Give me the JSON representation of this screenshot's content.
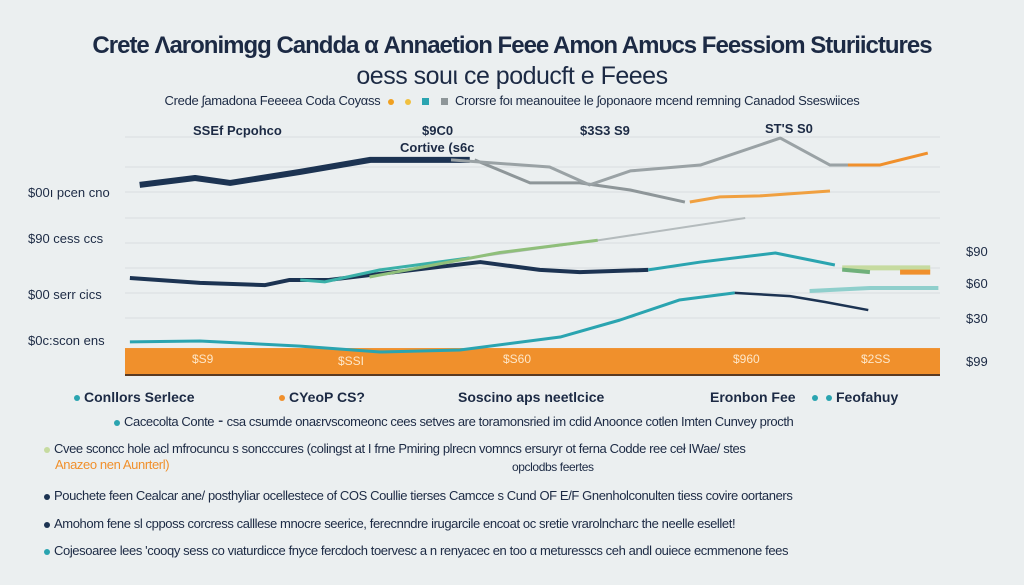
{
  "title": "Crete Λaronimgg Candda α Annaetion Feee Amon Amυcs Feessiom Sturiictures",
  "subtitle": "oess souι ce poducft e Feees",
  "legend_line": {
    "left": "Crede ʃamadona Feeeea  Coda Coyαss",
    "right": "Crorsre foι meanouitee le ʃoponaore mcend remning Canadod Sseswiices"
  },
  "colors": {
    "navy": "#1c3352",
    "gray": "#8e9699",
    "teal": "#2aa4b0",
    "orange": "#f0902c",
    "green": "#8fbf7a",
    "paleteal": "#8fcfcc",
    "palegreen": "#c6dba0"
  },
  "chart_data": {
    "type": "line",
    "title": "Crete Λaronimgg Candda α Annaetion Feee Amon Amυcs Feessiom Sturiictures",
    "xlim": [
      0,
      100
    ],
    "ylim": [
      0,
      100
    ],
    "grid": true,
    "y_labels_left": [
      "$00ı pcen cno",
      "$90 cess ccs",
      "$00 serr cics",
      "$0c:scon ens"
    ],
    "y_labels_right": [
      "$90",
      "$60",
      "$30",
      "$99"
    ],
    "top_labels": [
      "SSEf Pcpohco",
      "$9C0",
      "Cortive (s6c",
      "$3S3 S9",
      "ST'S S0"
    ],
    "band_labels": [
      "$S9",
      "$SSI",
      "$S60",
      "$960",
      "$2SS"
    ],
    "band": {
      "name": "orange-base-band",
      "value": 11
    },
    "series": [
      {
        "name": "navy-top",
        "color": "#1c3352",
        "width": 6,
        "points": [
          [
            1.8,
            77.6
          ],
          [
            8.6,
            80.4
          ],
          [
            12.9,
            78.4
          ],
          [
            21.5,
            82.9
          ],
          [
            30.1,
            87.8
          ],
          [
            42.3,
            87.8
          ]
        ]
      },
      {
        "name": "gray-a",
        "color": "#8e9699",
        "width": 3,
        "points": [
          [
            42.9,
            87.8
          ],
          [
            49.7,
            78.4
          ],
          [
            55.8,
            78.4
          ],
          [
            62,
            75.5
          ],
          [
            68.7,
            70.6
          ]
        ]
      },
      {
        "name": "gray-b",
        "color": "#9aa2a5",
        "width": 3,
        "points": [
          [
            40,
            87.8
          ],
          [
            52.1,
            84.9
          ],
          [
            57,
            77.6
          ],
          [
            62,
            83.3
          ],
          [
            70.6,
            85.7
          ],
          [
            80.4,
            96.7
          ],
          [
            86.5,
            85.7
          ],
          [
            91.4,
            85.7
          ]
        ]
      },
      {
        "name": "orange-top",
        "color": "#f0902c",
        "width": 3,
        "points": [
          [
            88.7,
            85.7
          ],
          [
            92.6,
            85.7
          ],
          [
            98.5,
            90.6
          ]
        ]
      },
      {
        "name": "orange-mid",
        "color": "#f0a040",
        "width": 3,
        "points": [
          [
            69.3,
            70.6
          ],
          [
            73,
            72.7
          ],
          [
            77.9,
            73.1
          ],
          [
            86.5,
            75.1
          ]
        ]
      },
      {
        "name": "navy-mid",
        "color": "#1c3352",
        "width": 4,
        "points": [
          [
            0.6,
            39.6
          ],
          [
            9.2,
            37.6
          ],
          [
            17.2,
            36.7
          ],
          [
            20.2,
            38.8
          ],
          [
            25,
            38.8
          ],
          [
            43.6,
            46.1
          ],
          [
            50.9,
            42.9
          ],
          [
            55.8,
            42
          ],
          [
            64.2,
            42.9
          ]
        ]
      },
      {
        "name": "teal-mid",
        "color": "#2aa4b0",
        "width": 3,
        "points": [
          [
            64.2,
            42.9
          ],
          [
            70.6,
            46.1
          ],
          [
            79.8,
            49.8
          ],
          [
            87.1,
            44.9
          ]
        ]
      },
      {
        "name": "teal-low-mid",
        "color": "#3ab0a8",
        "width": 3,
        "points": [
          [
            21.5,
            38.8
          ],
          [
            24.5,
            38
          ],
          [
            31.3,
            42.9
          ],
          [
            42.3,
            47.8
          ]
        ]
      },
      {
        "name": "gray-diagonal",
        "color": "#b4bbbd",
        "width": 2,
        "points": [
          [
            42.3,
            47.8
          ],
          [
            58.3,
            55.1
          ],
          [
            76.1,
            64.1
          ]
        ]
      },
      {
        "name": "green-fill",
        "color": "#8fbf7a",
        "width": 3,
        "points": [
          [
            30,
            40
          ],
          [
            38,
            45
          ],
          [
            46,
            50
          ],
          [
            58,
            55
          ]
        ]
      },
      {
        "name": "navy-low",
        "color": "#1c3352",
        "width": 2.5,
        "points": [
          [
            74.8,
            33.5
          ],
          [
            81.6,
            32.2
          ],
          [
            85.9,
            29.8
          ],
          [
            91.2,
            26.5
          ]
        ]
      },
      {
        "name": "teal-low",
        "color": "#2aa4b0",
        "width": 3,
        "points": [
          [
            0.6,
            13.5
          ],
          [
            9.2,
            13.9
          ],
          [
            21.5,
            11.8
          ],
          [
            31.3,
            9.4
          ],
          [
            41.1,
            10.2
          ],
          [
            53.4,
            15.5
          ],
          [
            60.7,
            22.4
          ],
          [
            68,
            30.6
          ],
          [
            74.8,
            33.5
          ]
        ]
      },
      {
        "name": "paleteal-right",
        "color": "#8fcfcc",
        "width": 4,
        "points": [
          [
            84,
            34.3
          ],
          [
            91.4,
            35.5
          ],
          [
            99.8,
            35.5
          ]
        ]
      },
      {
        "name": "palegreen-right",
        "color": "#c6dba0",
        "width": 5,
        "points": [
          [
            88,
            43.7
          ],
          [
            98.8,
            43.7
          ]
        ]
      },
      {
        "name": "green-right",
        "color": "#6fb07a",
        "width": 4,
        "points": [
          [
            88,
            43
          ],
          [
            91.4,
            42
          ]
        ]
      },
      {
        "name": "orange-right",
        "color": "#f0902c",
        "width": 5,
        "points": [
          [
            95.1,
            42
          ],
          [
            98.8,
            42
          ]
        ]
      }
    ]
  },
  "legend2": {
    "item1": "Conllors Serlece",
    "item2": "CYeoP CS?",
    "item3": "Soscino aps neetlcice",
    "item4": "Eronbon Fee",
    "item5": "Feofahuy"
  },
  "notes": [
    "Cacecolta Conte  ⁃ csa csumde onaεrvscomeonc cees setves are toramonsried im cdid Anoonce cotlen Imten Cunvey procth",
    "Cvee sconcc hole acl mfrocuncu s soncccures (colingst at I frne Pmiring plrecn vomncs ersuryr ot ferna Codde ree ceł IWae/ stes",
    "Anazeo nen Aunrterl)",
    "opclodbs feertes",
    "Pouchete feen Cealcar ane/ posthyliar ocellestece of COS Coullie tierses Camcce s Cund OF E/F Gnenholconulten tiess covire oortaners",
    "Amohom fene sl cpposs corcress calllese mnocre seerice, ferecnndre irugarcile encoat oc sretie vrarolncharc the neelle esellet!",
    "Cojesoaree lees 'cooqy sess co vιaturdicce fnyce fercdoch toervesc a n renyacec en too α meturesscs ceh andl ouiece ecmmenone fees"
  ]
}
